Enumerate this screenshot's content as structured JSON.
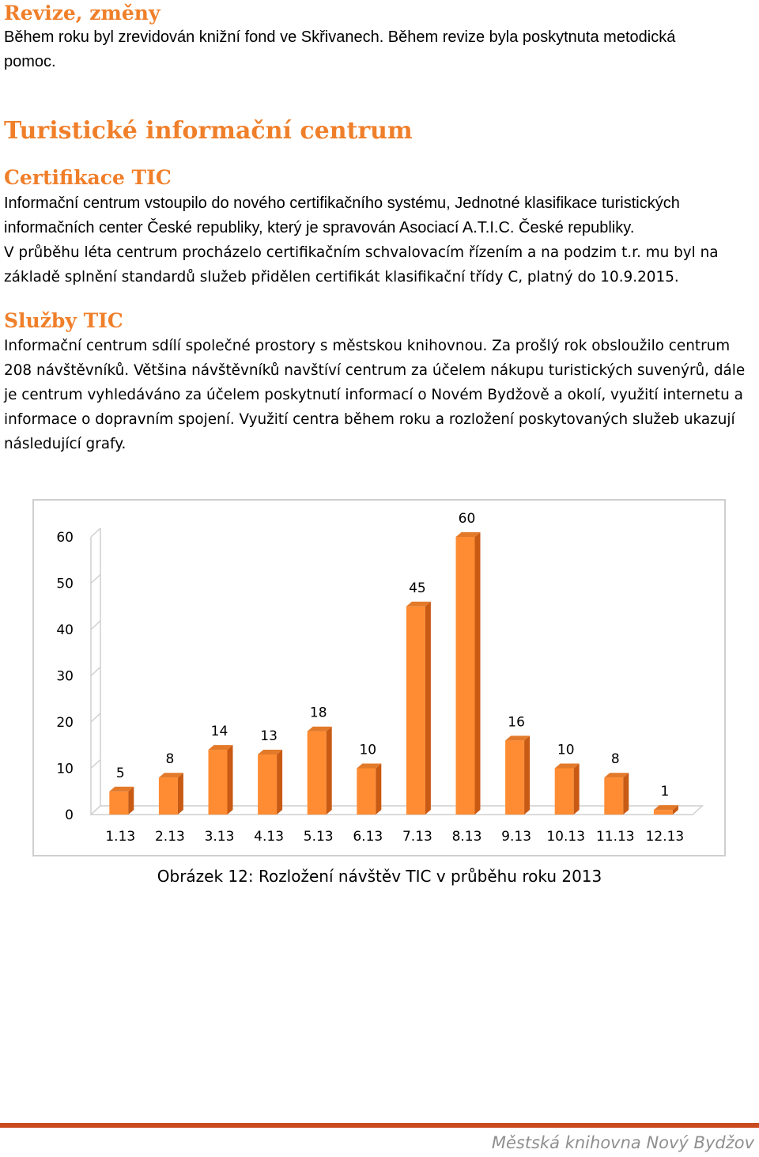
{
  "section_revize": {
    "title": "Revize, změny",
    "lines": [
      "Během roku byl zrevidován knižní fond ve Skřivanech. Během revize byla poskytnuta metodická",
      "pomoc."
    ]
  },
  "section_tic": {
    "title": "Turistické informační centrum"
  },
  "section_cert": {
    "title": "Certifikace TIC",
    "lines": [
      "Informační centrum vstoupilo do nového certifikačního systému, Jednotné klasifikace turistických",
      "informačních center České republiky, který je spravován  Asociací A.T.I.C. České republiky.",
      "V průběhu léta centrum procházelo certifikačním schvalovacím řízením a na podzim t.r. mu byl na",
      "základě splnění standardů služeb přidělen certifikát klasifikační třídy  C, platný do 10.9.2015."
    ]
  },
  "section_sluzby": {
    "title": "Služby TIC",
    "lines": [
      "Informační centrum sdílí společné prostory s městskou knihovnou. Za prošlý rok obsloužilo centrum",
      "208 návštěvníků. Většina návštěvníků navštíví centrum za účelem nákupu turistických suvenýrů, dále",
      "je centrum vyhledáváno za účelem poskytnutí informací o Novém Bydžově a okolí, využití internetu a",
      "informace o dopravním spojení. Využití centra během roku a rozložení poskytovaných služeb ukazují",
      "následující grafy."
    ]
  },
  "chart_data": {
    "type": "bar",
    "categories": [
      "1.13",
      "2.13",
      "3.13",
      "4.13",
      "5.13",
      "6.13",
      "7.13",
      "8.13",
      "9.13",
      "10.13",
      "11.13",
      "12.13"
    ],
    "values": [
      5,
      8,
      14,
      13,
      18,
      10,
      45,
      60,
      16,
      10,
      8,
      1
    ],
    "yticks": [
      0,
      10,
      20,
      30,
      40,
      50,
      60
    ],
    "ylim": [
      0,
      60
    ],
    "title": "",
    "xlabel": "",
    "ylabel": "",
    "grid": false,
    "legend": "none",
    "bar_color": "#FF8C33",
    "bar_side_color": "#C85A14",
    "bar_top_color": "#E37A2A"
  },
  "caption": "Obrázek 12: Rozložení návštěv TIC v průběhu roku 2013",
  "footer": "Městská knihovna Nový Bydžov",
  "colors": {
    "heading": "#F07F2A",
    "footer_rule": "#C84A1E",
    "footer_text": "#8f8f8f"
  }
}
